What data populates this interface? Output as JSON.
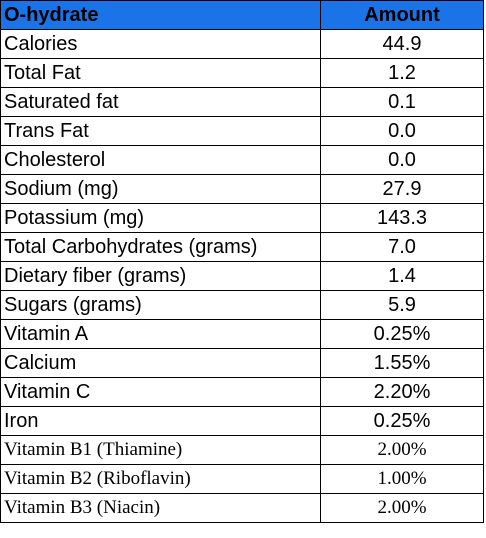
{
  "table": {
    "headers": {
      "name": "O-hydrate",
      "amount": "Amount"
    },
    "header_color": "#1b73e8",
    "rows": [
      {
        "name": "Calories",
        "amount": "44.9"
      },
      {
        "name": "Total Fat",
        "amount": "1.2"
      },
      {
        "name": "Saturated fat",
        "amount": "0.1"
      },
      {
        "name": "Trans Fat",
        "amount": "0.0"
      },
      {
        "name": "Cholesterol",
        "amount": "0.0"
      },
      {
        "name": "Sodium (mg)",
        "amount": "27.9"
      },
      {
        "name": "Potassium (mg)",
        "amount": "143.3"
      },
      {
        "name": "Total Carbohydrates (grams)",
        "amount": "7.0"
      },
      {
        "name": "Dietary fiber (grams)",
        "amount": "1.4"
      },
      {
        "name": "Sugars (grams)",
        "amount": "5.9"
      },
      {
        "name": "Vitamin A",
        "amount": "0.25%"
      },
      {
        "name": "Calcium",
        "amount": "1.55%"
      },
      {
        "name": "Vitamin C",
        "amount": "2.20%"
      },
      {
        "name": "Iron",
        "amount": "0.25%"
      },
      {
        "name": "Vitamin B1 (Thiamine)",
        "amount": "2.00%"
      },
      {
        "name": "Vitamin B2 (Riboflavin)",
        "amount": "1.00%"
      },
      {
        "name": "Vitamin B3 (Niacin)",
        "amount": "2.00%"
      }
    ]
  }
}
